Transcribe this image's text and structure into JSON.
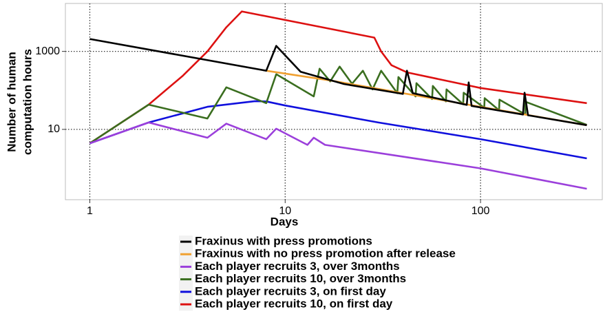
{
  "chart_data": {
    "type": "line",
    "xlabel": "Days",
    "ylabel": [
      "Number of human",
      "computation hours"
    ],
    "xscale": "log",
    "yscale": "log",
    "xlim": [
      0.75,
      420
    ],
    "ylim": [
      0.157,
      17000
    ],
    "xticks": [
      1,
      10,
      100
    ],
    "yticks": [
      10,
      1000
    ],
    "grid": true,
    "legend": "bottom",
    "series": [
      {
        "name": "Fraxinus with press promotions",
        "color": "#000000",
        "x": [
          1,
          8,
          9,
          12,
          20,
          40,
          42,
          45,
          85,
          87,
          90,
          165,
          168,
          175,
          350
        ],
        "values": [
          2080,
          319,
          1390,
          300,
          146,
          81,
          319,
          85,
          42.5,
          160,
          40,
          24,
          87,
          23,
          12.8
        ]
      },
      {
        "name": "Fraxinus with no press promotion after release",
        "color": "#f0a030",
        "x": [
          8,
          17,
          100,
          350
        ],
        "values": [
          319,
          180,
          38,
          12.8
        ]
      },
      {
        "name": "Each player recruits 3, over 3months",
        "color": "#9b3fdb",
        "x": [
          1,
          2,
          4,
          5,
          8,
          9,
          13,
          14,
          16,
          100,
          350
        ],
        "values": [
          4.4,
          15,
          6.1,
          14,
          5.6,
          10.4,
          4,
          6.1,
          4,
          1.0,
          0.3
        ]
      },
      {
        "name": "Each player recruits 10, over 3months",
        "color": "#3a6e1f",
        "x": [
          1,
          2,
          4,
          5,
          8,
          9,
          14,
          15,
          17,
          19,
          22,
          25,
          28,
          31,
          37.5,
          38,
          46.5,
          47,
          56.5,
          57,
          66.5,
          67,
          81.5,
          82,
          104.5,
          105,
          124.5,
          125,
          169.5,
          170,
          350
        ],
        "values": [
          4.4,
          43,
          19,
          120,
          47,
          260,
          70,
          360,
          170,
          408,
          148,
          320,
          106,
          320,
          85,
          220,
          70,
          153,
          60,
          130,
          52,
          106,
          44,
          87,
          36,
          63,
          31,
          58,
          24,
          51,
          13
        ]
      },
      {
        "name": "Each player recruits 3, on first day",
        "color": "#1010dd",
        "x": [
          1,
          2,
          4,
          7,
          8,
          10,
          30,
          100,
          350
        ],
        "values": [
          4.4,
          15,
          38,
          53,
          52,
          41,
          15,
          5.6,
          1.8
        ]
      },
      {
        "name": "Each player recruits 10, on first day",
        "color": "#dd1111",
        "x": [
          1,
          2,
          3,
          4,
          5,
          6,
          28.6,
          31,
          35,
          42,
          100,
          350
        ],
        "values": [
          4.4,
          43,
          240,
          1000,
          4160,
          10600,
          2260,
          1000,
          443,
          290,
          115,
          47
        ]
      }
    ]
  }
}
